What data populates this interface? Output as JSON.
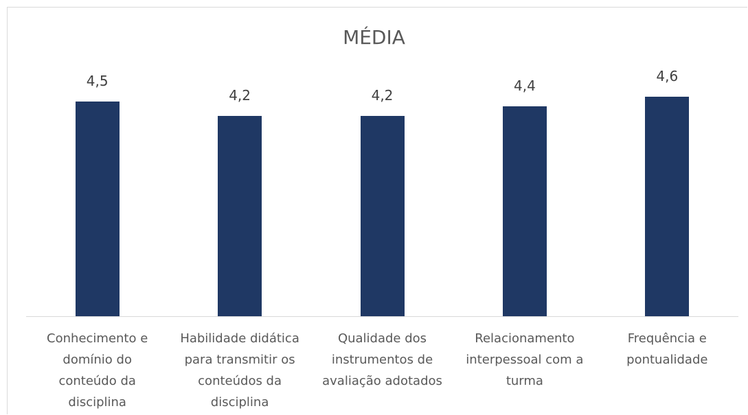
{
  "chart_data": {
    "type": "bar",
    "title": "MÉDIA",
    "categories": [
      "Conhecimento e domínio do conteúdo da disciplina",
      "Habilidade didática para transmitir os conteúdos da disciplina",
      "Qualidade dos instrumentos de avaliação adotados",
      "Relacionamento interpessoal com a turma",
      "Frequência e pontualidade"
    ],
    "values": [
      4.5,
      4.2,
      4.2,
      4.4,
      4.6
    ],
    "value_labels": [
      "4,5",
      "4,2",
      "4,2",
      "4,4",
      "4,6"
    ],
    "color": "#1f3864"
  }
}
